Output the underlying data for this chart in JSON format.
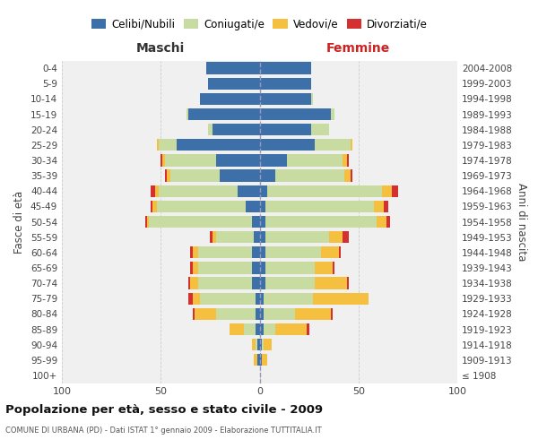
{
  "age_groups": [
    "100+",
    "95-99",
    "90-94",
    "85-89",
    "80-84",
    "75-79",
    "70-74",
    "65-69",
    "60-64",
    "55-59",
    "50-54",
    "45-49",
    "40-44",
    "35-39",
    "30-34",
    "25-29",
    "20-24",
    "15-19",
    "10-14",
    "5-9",
    "0-4"
  ],
  "birth_years": [
    "≤ 1908",
    "1909-1913",
    "1914-1918",
    "1919-1923",
    "1924-1928",
    "1929-1933",
    "1934-1938",
    "1939-1943",
    "1944-1948",
    "1949-1953",
    "1954-1958",
    "1959-1963",
    "1964-1968",
    "1969-1973",
    "1974-1978",
    "1979-1983",
    "1984-1988",
    "1989-1993",
    "1994-1998",
    "1999-2003",
    "2004-2008"
  ],
  "colors": {
    "celibi": "#3d6fa8",
    "coniugati": "#c8dba0",
    "vedovi": "#f5c040",
    "divorziati": "#d43030"
  },
  "maschi": {
    "celibi": [
      0,
      1,
      1,
      2,
      2,
      2,
      4,
      4,
      4,
      3,
      4,
      7,
      11,
      20,
      22,
      42,
      24,
      36,
      30,
      26,
      27
    ],
    "coniugati": [
      0,
      0,
      1,
      6,
      20,
      28,
      27,
      27,
      27,
      19,
      52,
      45,
      40,
      25,
      26,
      9,
      2,
      1,
      0,
      0,
      0
    ],
    "vedovi": [
      0,
      2,
      2,
      7,
      11,
      4,
      4,
      3,
      3,
      2,
      1,
      2,
      2,
      2,
      1,
      1,
      0,
      0,
      0,
      0,
      0
    ],
    "divorziati": [
      0,
      0,
      0,
      0,
      1,
      2,
      1,
      1,
      1,
      1,
      1,
      1,
      2,
      1,
      1,
      0,
      0,
      0,
      0,
      0,
      0
    ]
  },
  "femmine": {
    "nubili": [
      0,
      1,
      1,
      2,
      2,
      2,
      3,
      3,
      3,
      3,
      3,
      3,
      4,
      8,
      14,
      28,
      26,
      36,
      26,
      26,
      26
    ],
    "coniugate": [
      0,
      0,
      1,
      6,
      16,
      25,
      25,
      25,
      28,
      32,
      56,
      55,
      58,
      35,
      28,
      18,
      9,
      2,
      1,
      0,
      0
    ],
    "vedove": [
      0,
      3,
      4,
      16,
      18,
      28,
      16,
      9,
      9,
      7,
      5,
      5,
      5,
      3,
      2,
      1,
      0,
      0,
      0,
      0,
      0
    ],
    "divorziate": [
      0,
      0,
      0,
      1,
      1,
      0,
      1,
      1,
      1,
      3,
      2,
      2,
      3,
      1,
      1,
      0,
      0,
      0,
      0,
      0,
      0
    ]
  },
  "title": "Popolazione per età, sesso e stato civile - 2009",
  "subtitle": "COMUNE DI URBANA (PD) - Dati ISTAT 1° gennaio 2009 - Elaborazione TUTTITALIA.IT",
  "header_left": "Maschi",
  "header_right": "Femmine",
  "ylabel_left": "Fasce di età",
  "ylabel_right": "Anni di nascita",
  "xlim": 100,
  "legend_labels": [
    "Celibi/Nubili",
    "Coniugati/e",
    "Vedovi/e",
    "Divorziati/e"
  ],
  "bg_color": "#ffffff",
  "plot_bg": "#f0f0f0",
  "grid_color": "#cccccc"
}
